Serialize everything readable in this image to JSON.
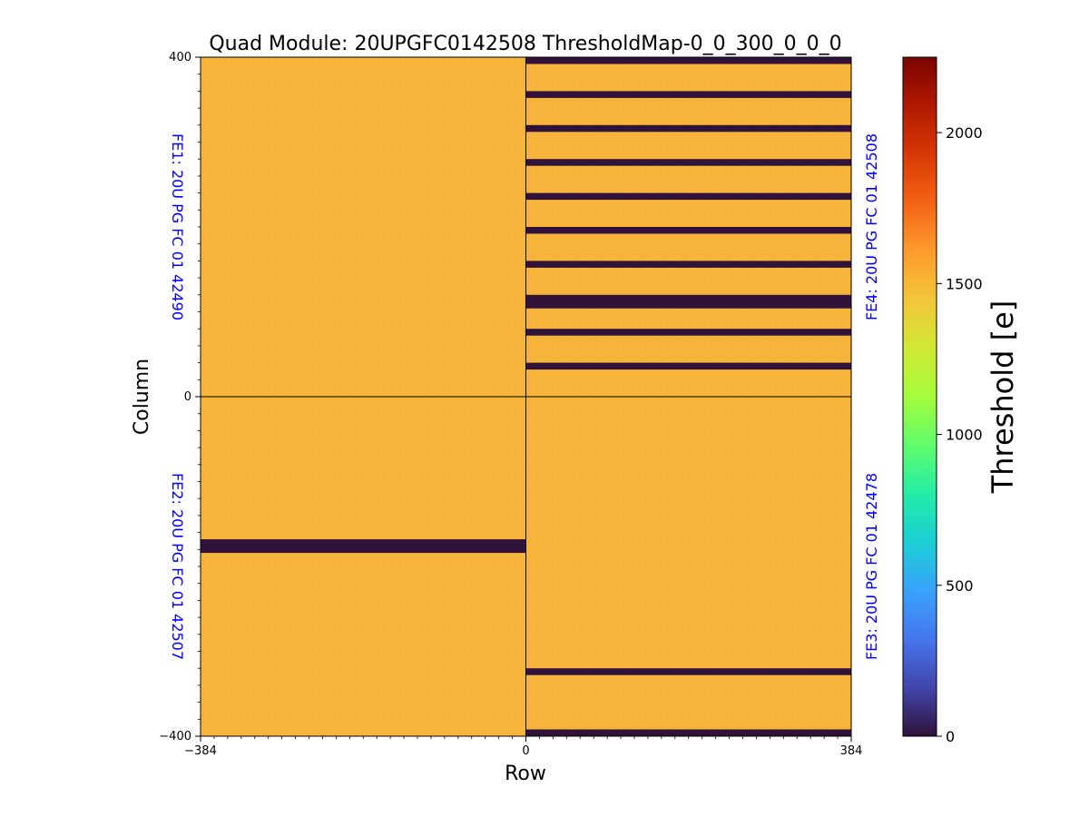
{
  "chart_data": {
    "type": "heatmap",
    "title": "Quad Module: 20UPGFC0142508 ThresholdMap-0_0_300_0_0_0",
    "xlabel": "Row",
    "ylabel": "Column",
    "xlim": [
      -384,
      384
    ],
    "ylim": [
      -400,
      400
    ],
    "x_ticks": [
      -384,
      0,
      384
    ],
    "x_tick_labels": [
      "−384",
      "0",
      "384"
    ],
    "y_ticks": [
      -400,
      0,
      400
    ],
    "y_tick_labels": [
      "−400",
      "0",
      "400"
    ],
    "background_value": 1500,
    "background_color": "#f7b43a",
    "dead_color": "#30123b",
    "colorbar": {
      "label": "Threshold [e]",
      "min": 0,
      "max": 2250,
      "ticks": [
        0,
        500,
        1000,
        1500,
        2000
      ],
      "tick_labels": [
        "0",
        "500",
        "1000",
        "1500",
        "2000"
      ],
      "colormap": [
        "#30123b",
        "#4145ab",
        "#4675ed",
        "#39a2fc",
        "#1bcfd4",
        "#24eca6",
        "#61fc6c",
        "#a4fc3b",
        "#d1e834",
        "#f3c63a",
        "#fe9b2d",
        "#f36315",
        "#d93806",
        "#b11901",
        "#7a0402"
      ]
    },
    "front_ends": [
      {
        "id": "FE1",
        "label": "FE1: 20U PG FC 01 42490",
        "x_range": [
          -384,
          0
        ],
        "y_range": [
          0,
          400
        ]
      },
      {
        "id": "FE2",
        "label": "FE2: 20U PG FC 01 42507",
        "x_range": [
          -384,
          0
        ],
        "y_range": [
          -400,
          0
        ]
      },
      {
        "id": "FE3",
        "label": "FE3: 20U PG FC 01 42478",
        "x_range": [
          0,
          384
        ],
        "y_range": [
          -400,
          0
        ]
      },
      {
        "id": "FE4",
        "label": "FE4: 20U PG FC 01 42508",
        "x_range": [
          0,
          384
        ],
        "y_range": [
          0,
          400
        ]
      }
    ],
    "dead_bands": [
      {
        "x_range": [
          0,
          384
        ],
        "y_range": [
          392,
          400
        ],
        "value": 0
      },
      {
        "x_range": [
          0,
          384
        ],
        "y_range": [
          352,
          360
        ],
        "value": 0
      },
      {
        "x_range": [
          0,
          384
        ],
        "y_range": [
          312,
          320
        ],
        "value": 0
      },
      {
        "x_range": [
          0,
          384
        ],
        "y_range": [
          272,
          280
        ],
        "value": 0
      },
      {
        "x_range": [
          0,
          384
        ],
        "y_range": [
          232,
          240
        ],
        "value": 0
      },
      {
        "x_range": [
          0,
          384
        ],
        "y_range": [
          192,
          200
        ],
        "value": 0
      },
      {
        "x_range": [
          0,
          384
        ],
        "y_range": [
          152,
          160
        ],
        "value": 0
      },
      {
        "x_range": [
          0,
          384
        ],
        "y_range": [
          104,
          120
        ],
        "value": 0
      },
      {
        "x_range": [
          0,
          384
        ],
        "y_range": [
          72,
          80
        ],
        "value": 0
      },
      {
        "x_range": [
          0,
          384
        ],
        "y_range": [
          32,
          40
        ],
        "value": 0
      },
      {
        "x_range": [
          -384,
          0
        ],
        "y_range": [
          -184,
          -168
        ],
        "value": 0
      },
      {
        "x_range": [
          0,
          384
        ],
        "y_range": [
          -328,
          -320
        ],
        "value": 0
      },
      {
        "x_range": [
          0,
          384
        ],
        "y_range": [
          -400,
          -392
        ],
        "value": 0
      }
    ]
  }
}
